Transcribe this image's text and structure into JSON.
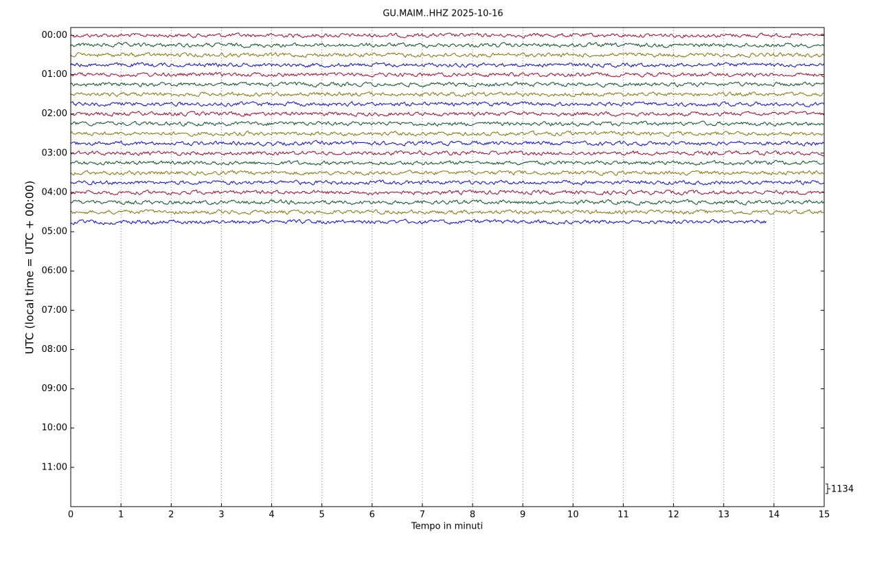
{
  "chart_data": {
    "type": "helicorder",
    "title": "GU.MAIM..HHZ 2025-10-16",
    "xlabel": "Tempo in minuti",
    "ylabel": "UTC (local time = UTC + 00:00)",
    "xlim": [
      0,
      15
    ],
    "xticks": [
      0,
      1,
      2,
      3,
      4,
      5,
      6,
      7,
      8,
      9,
      10,
      11,
      12,
      13,
      14,
      15
    ],
    "ylim": [
      12.0,
      -0.2
    ],
    "yticks": [
      {
        "value": 0,
        "label": "00:00"
      },
      {
        "value": 1,
        "label": "01:00"
      },
      {
        "value": 2,
        "label": "02:00"
      },
      {
        "value": 3,
        "label": "03:00"
      },
      {
        "value": 4,
        "label": "04:00"
      },
      {
        "value": 5,
        "label": "05:00"
      },
      {
        "value": 6,
        "label": "06:00"
      },
      {
        "value": 7,
        "label": "07:00"
      },
      {
        "value": 8,
        "label": "08:00"
      },
      {
        "value": 9,
        "label": "09:00"
      },
      {
        "value": 10,
        "label": "10:00"
      },
      {
        "value": 11,
        "label": "11:00"
      }
    ],
    "grid": true,
    "scale": 1134,
    "traces": [
      {
        "offset": 0,
        "end": 15,
        "color": "#a50021"
      },
      {
        "offset": 0.25,
        "end": 15,
        "color": "#004d1a"
      },
      {
        "offset": 0.5,
        "end": 15,
        "color": "#7f7000"
      },
      {
        "offset": 0.75,
        "end": 15,
        "color": "#0000ff"
      },
      {
        "offset": 1,
        "end": 15,
        "color": "#a50021"
      },
      {
        "offset": 1.25,
        "end": 15,
        "color": "#004d1a"
      },
      {
        "offset": 1.5,
        "end": 15,
        "color": "#7f7000"
      },
      {
        "offset": 1.75,
        "end": 15,
        "color": "#0000ff"
      },
      {
        "offset": 2,
        "end": 15,
        "color": "#a50021"
      },
      {
        "offset": 2.25,
        "end": 15,
        "color": "#004d1a"
      },
      {
        "offset": 2.5,
        "end": 15,
        "color": "#7f7000"
      },
      {
        "offset": 2.75,
        "end": 15,
        "color": "#0000ff"
      },
      {
        "offset": 3,
        "end": 15,
        "color": "#a50021"
      },
      {
        "offset": 3.25,
        "end": 15,
        "color": "#004d1a"
      },
      {
        "offset": 3.5,
        "end": 15,
        "color": "#7f7000"
      },
      {
        "offset": 3.75,
        "end": 15,
        "color": "#0000ff"
      },
      {
        "offset": 4,
        "end": 15,
        "color": "#a50021"
      },
      {
        "offset": 4.25,
        "end": 15,
        "color": "#004d1a"
      },
      {
        "offset": 4.5,
        "end": 15,
        "color": "#7f7000"
      },
      {
        "offset": 4.75,
        "end": 13.85,
        "color": "#0000ff"
      }
    ]
  }
}
